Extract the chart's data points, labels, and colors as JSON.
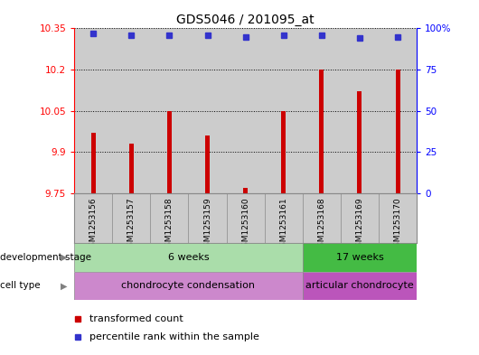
{
  "title": "GDS5046 / 201095_at",
  "samples": [
    "GSM1253156",
    "GSM1253157",
    "GSM1253158",
    "GSM1253159",
    "GSM1253160",
    "GSM1253161",
    "GSM1253168",
    "GSM1253169",
    "GSM1253170"
  ],
  "transformed_counts": [
    9.97,
    9.93,
    10.05,
    9.96,
    9.77,
    10.05,
    10.2,
    10.12,
    10.2
  ],
  "percentile_ranks": [
    97,
    96,
    96,
    96,
    95,
    96,
    96,
    94,
    95
  ],
  "y_min": 9.75,
  "y_max": 10.35,
  "y_ticks": [
    9.75,
    9.9,
    10.05,
    10.2,
    10.35
  ],
  "y_tick_labels": [
    "9.75",
    "9.9",
    "10.05",
    "10.2",
    "10.35"
  ],
  "right_y_ticks": [
    0,
    25,
    50,
    75,
    100
  ],
  "right_y_tick_labels": [
    "0",
    "25",
    "50",
    "75",
    "100%"
  ],
  "bar_color": "#cc0000",
  "dot_color": "#3333cc",
  "bar_width": 0.12,
  "groups": [
    {
      "label": "6 weeks",
      "start": 0,
      "end": 5,
      "color": "#aaddaa"
    },
    {
      "label": "17 weeks",
      "start": 6,
      "end": 8,
      "color": "#44bb44"
    }
  ],
  "cell_types": [
    {
      "label": "chondrocyte condensation",
      "start": 0,
      "end": 5,
      "color": "#cc88cc"
    },
    {
      "label": "articular chondrocyte",
      "start": 6,
      "end": 8,
      "color": "#bb55bb"
    }
  ],
  "development_stage_label": "development stage",
  "cell_type_label": "cell type",
  "legend_bar_label": "transformed count",
  "legend_dot_label": "percentile rank within the sample",
  "col_bg_color": "#cccccc",
  "fig_bg_color": "#ffffff"
}
